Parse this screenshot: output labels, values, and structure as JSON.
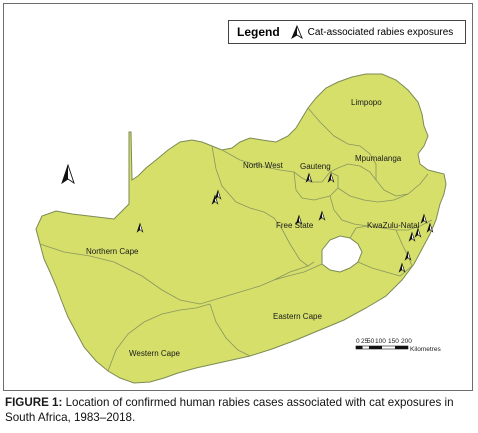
{
  "legend": {
    "title": "Legend",
    "icon": "cat-exposure-icon",
    "label": "Cat-associated rabies exposures"
  },
  "provinces": [
    {
      "id": "limpopo",
      "name": "Limpopo"
    },
    {
      "id": "mpumalanga",
      "name": "Mpumalanga"
    },
    {
      "id": "north-west",
      "name": "North West"
    },
    {
      "id": "gauteng",
      "name": "Gauteng"
    },
    {
      "id": "free-state",
      "name": "Free State"
    },
    {
      "id": "kwazulu-natal",
      "name": "KwaZulu-Natal"
    },
    {
      "id": "northern-cape",
      "name": "Northern Cape"
    },
    {
      "id": "eastern-cape",
      "name": "Eastern Cape"
    },
    {
      "id": "western-cape",
      "name": "Western Cape"
    }
  ],
  "scale_bar": {
    "ticks": [
      "0",
      "25",
      "50",
      "100",
      "150",
      "200"
    ],
    "unit": "Kilometres"
  },
  "colors": {
    "land": "#d5df6a",
    "border": "#7d8a54",
    "lesotho": "#ffffff"
  },
  "caption": {
    "label": "FIGURE 1:",
    "text": " Location of confirmed human rabies cases associated with cat exposures in South Africa, 1983–2018."
  }
}
